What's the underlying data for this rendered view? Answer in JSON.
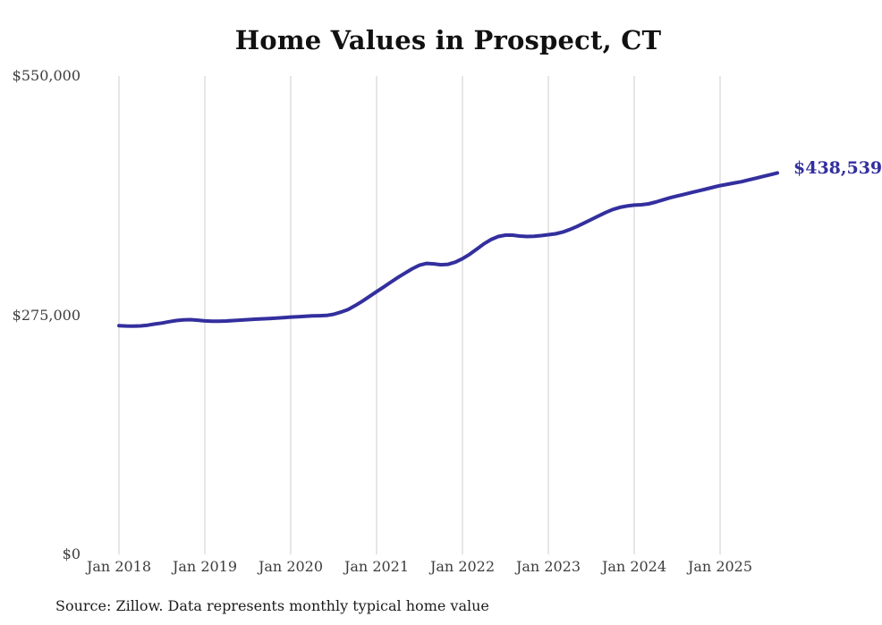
{
  "title": "Home Values in Prospect, CT",
  "source_note": "Source: Zillow. Data represents monthly typical home value",
  "colors": {
    "line": "#332f9e",
    "end_label": "#332f9e",
    "grid": "#cccccc",
    "axis_text": "#3d3d3d",
    "title_text": "#111111",
    "background": "#ffffff"
  },
  "chart_data": {
    "type": "line",
    "title": "Home Values in Prospect, CT",
    "xlabel": "",
    "ylabel": "",
    "ylim": [
      0,
      550000
    ],
    "grid": "vertical-only",
    "legend": "none",
    "last_value": 438539,
    "last_value_label": "$438,539",
    "y_ticks": [
      {
        "label": "$0",
        "value": 0
      },
      {
        "label": "$275,000",
        "value": 275000
      },
      {
        "label": "$550,000",
        "value": 550000
      }
    ],
    "x_ticks": [
      {
        "label": "Jan 2018",
        "month_index": 0
      },
      {
        "label": "Jan 2019",
        "month_index": 12
      },
      {
        "label": "Jan 2020",
        "month_index": 24
      },
      {
        "label": "Jan 2021",
        "month_index": 36
      },
      {
        "label": "Jan 2022",
        "month_index": 48
      },
      {
        "label": "Jan 2023",
        "month_index": 60
      },
      {
        "label": "Jan 2024",
        "month_index": 72
      },
      {
        "label": "Jan 2025",
        "month_index": 84
      }
    ],
    "x": [
      "2018-01",
      "2018-02",
      "2018-03",
      "2018-04",
      "2018-05",
      "2018-06",
      "2018-07",
      "2018-08",
      "2018-09",
      "2018-10",
      "2018-11",
      "2018-12",
      "2019-01",
      "2019-02",
      "2019-03",
      "2019-04",
      "2019-05",
      "2019-06",
      "2019-07",
      "2019-08",
      "2019-09",
      "2019-10",
      "2019-11",
      "2019-12",
      "2020-01",
      "2020-02",
      "2020-03",
      "2020-04",
      "2020-05",
      "2020-06",
      "2020-07",
      "2020-08",
      "2020-09",
      "2020-10",
      "2020-11",
      "2020-12",
      "2021-01",
      "2021-02",
      "2021-03",
      "2021-04",
      "2021-05",
      "2021-06",
      "2021-07",
      "2021-08",
      "2021-09",
      "2021-10",
      "2021-11",
      "2021-12",
      "2022-01",
      "2022-02",
      "2022-03",
      "2022-04",
      "2022-05",
      "2022-06",
      "2022-07",
      "2022-08",
      "2022-09",
      "2022-10",
      "2022-11",
      "2022-12",
      "2023-01",
      "2023-02",
      "2023-03",
      "2023-04",
      "2023-05",
      "2023-06",
      "2023-07",
      "2023-08",
      "2023-09",
      "2023-10",
      "2023-11",
      "2023-12",
      "2024-01",
      "2024-02",
      "2024-03",
      "2024-04",
      "2024-05",
      "2024-06",
      "2024-07",
      "2024-08",
      "2024-09",
      "2024-10",
      "2024-11",
      "2024-12",
      "2025-01",
      "2025-02",
      "2025-03",
      "2025-04",
      "2025-05",
      "2025-06",
      "2025-07",
      "2025-08",
      "2025-09"
    ],
    "values": [
      263000,
      262600,
      262400,
      262700,
      263500,
      264800,
      266000,
      267500,
      268800,
      269600,
      269900,
      269200,
      268400,
      268000,
      268000,
      268300,
      268800,
      269300,
      269900,
      270400,
      270800,
      271200,
      271600,
      272200,
      272800,
      273300,
      273800,
      274200,
      274400,
      274700,
      276000,
      278500,
      281500,
      286000,
      291000,
      296500,
      302000,
      307500,
      313000,
      318500,
      323500,
      328500,
      332500,
      334500,
      334000,
      333000,
      333500,
      336000,
      340000,
      345000,
      351000,
      357000,
      362000,
      365500,
      367000,
      367000,
      366000,
      365500,
      365800,
      366500,
      367500,
      368500,
      370500,
      373500,
      377000,
      381000,
      385000,
      389000,
      393000,
      396500,
      399000,
      400500,
      401500,
      402000,
      403000,
      405000,
      407500,
      410000,
      412000,
      414000,
      416000,
      418000,
      420000,
      422000,
      424000,
      425500,
      427000,
      428500,
      430500,
      432500,
      434500,
      436500,
      438539
    ]
  }
}
